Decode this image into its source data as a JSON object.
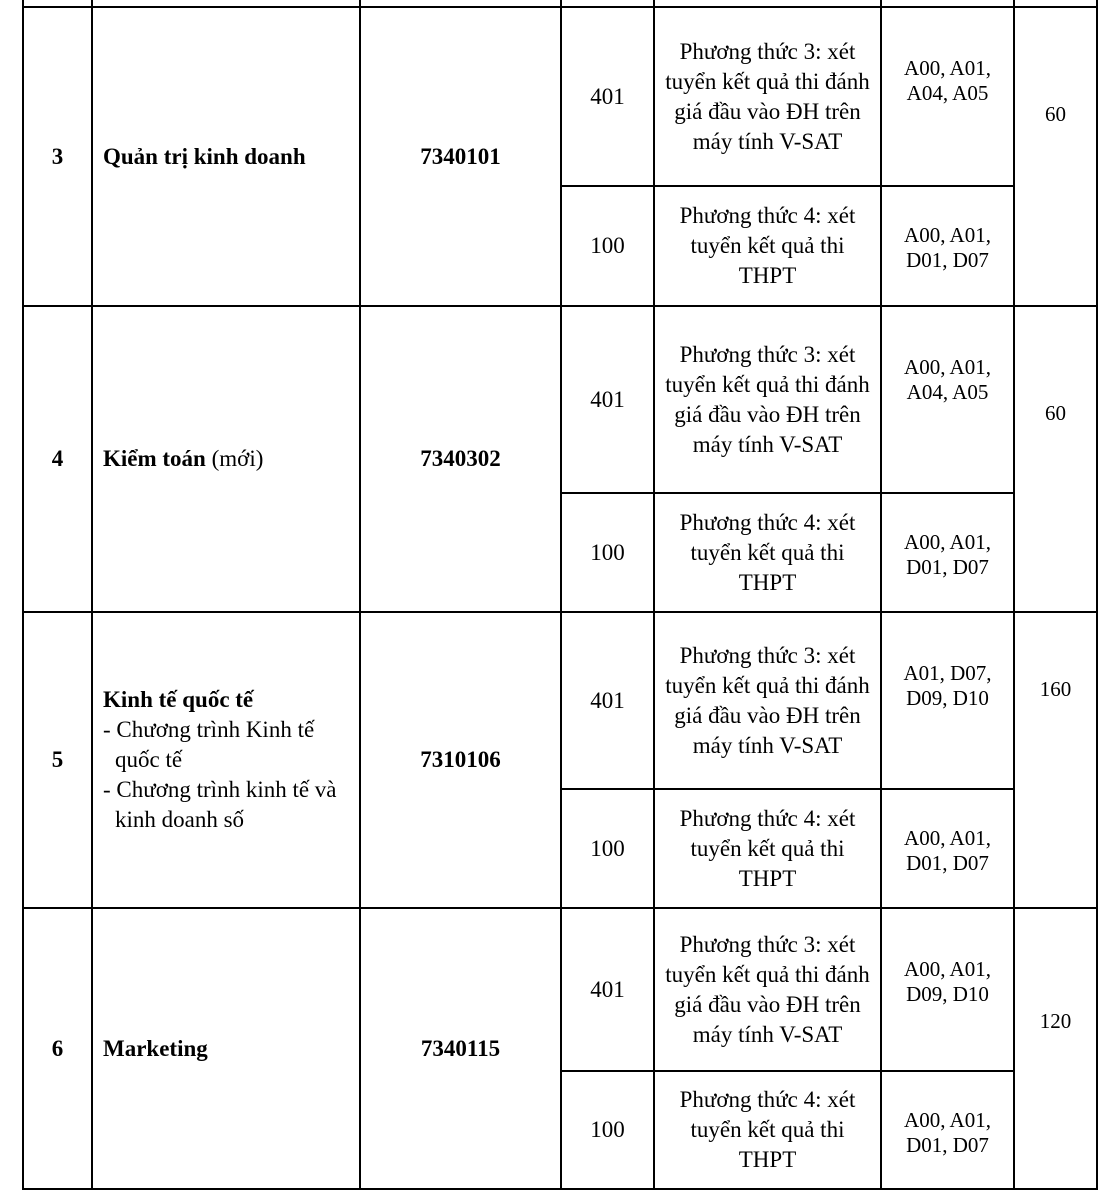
{
  "rows": [
    {
      "stt": "3",
      "major": "Quản trị kinh doanh",
      "major_note": "",
      "programs": [],
      "code": "7340101",
      "quota": "60",
      "methods": [
        {
          "method_code": "401",
          "method": "Phương thức 3: xét tuyển kết quả thi đánh giá đầu vào ĐH trên máy tính V-SAT",
          "combos": "A00, A01, A04, A05"
        },
        {
          "method_code": "100",
          "method": "Phương thức 4: xét tuyển kết quả thi THPT",
          "combos": "A00, A01, D01, D07"
        }
      ]
    },
    {
      "stt": "4",
      "major": "Kiểm toán",
      "major_note": " (mới)",
      "programs": [],
      "code": "7340302",
      "quota": "60",
      "methods": [
        {
          "method_code": "401",
          "method": "Phương thức 3: xét tuyển kết quả thi đánh giá đầu vào ĐH trên máy tính V-SAT",
          "combos": "A00, A01, A04, A05"
        },
        {
          "method_code": "100",
          "method": "Phương thức 4: xét tuyển kết quả thi THPT",
          "combos": "A00, A01, D01, D07"
        }
      ]
    },
    {
      "stt": "5",
      "major": "Kinh tế quốc tế",
      "major_note": "",
      "programs": [
        "- Chương trình Kinh tế quốc tế",
        "- Chương trình kinh tế và kinh doanh số"
      ],
      "code": "7310106",
      "quota": "160",
      "methods": [
        {
          "method_code": "401",
          "method": "Phương thức 3: xét tuyển kết quả thi đánh giá đầu vào ĐH trên máy tính V-SAT",
          "combos": "A01, D07, D09, D10"
        },
        {
          "method_code": "100",
          "method": "Phương thức 4: xét tuyển kết quả thi THPT",
          "combos": "A00, A01, D01, D07"
        }
      ]
    },
    {
      "stt": "6",
      "major": "Marketing",
      "major_note": "",
      "programs": [],
      "code": "7340115",
      "quota": "120",
      "methods": [
        {
          "method_code": "401",
          "method": "Phương thức 3: xét tuyển kết quả thi đánh giá đầu vào ĐH trên máy tính V-SAT",
          "combos": "A00, A01, D09, D10"
        },
        {
          "method_code": "100",
          "method": "Phương thức 4: xét tuyển kết quả thi THPT",
          "combos": "A00, A01, D01, D07"
        }
      ]
    }
  ]
}
